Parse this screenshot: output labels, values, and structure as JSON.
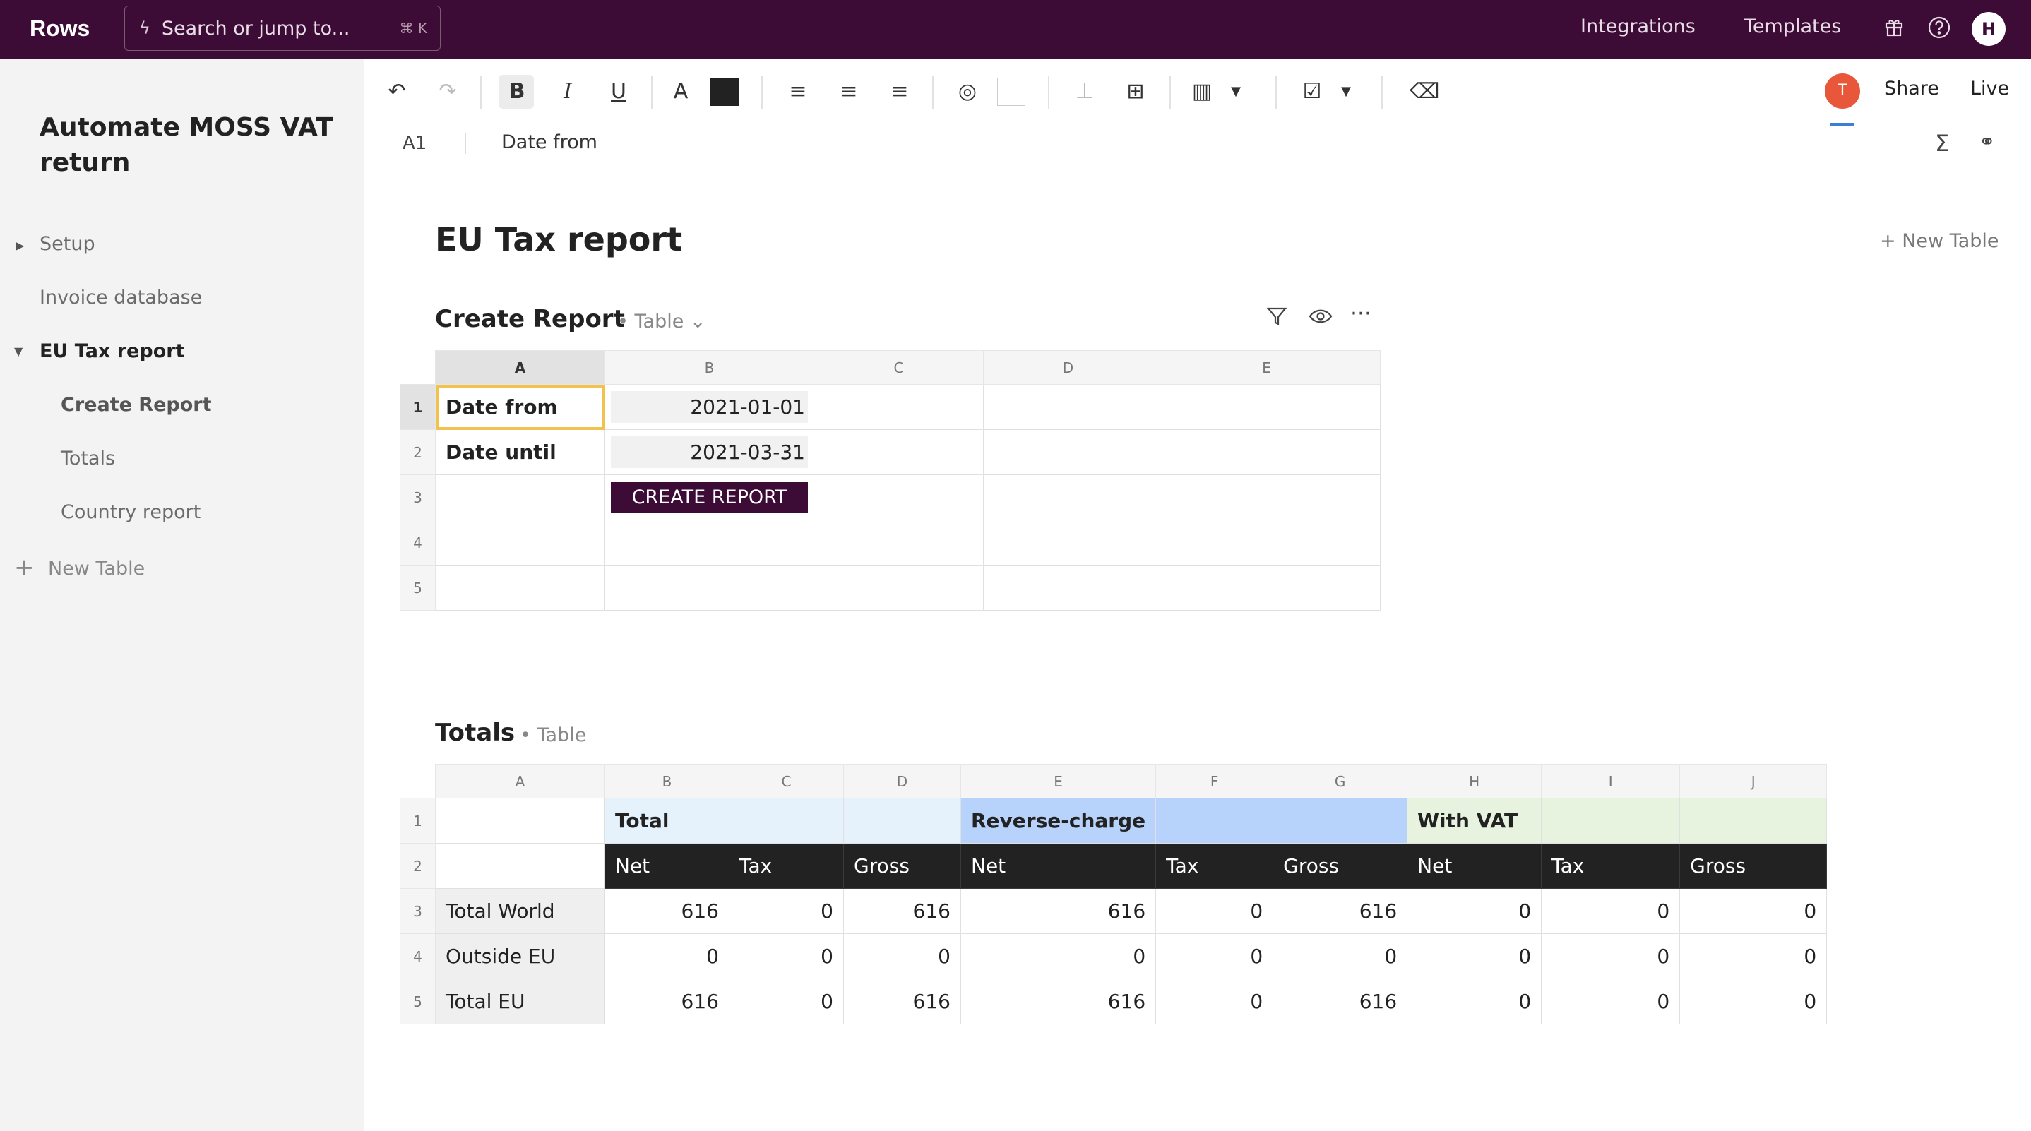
{
  "app": {
    "logo": "Rows",
    "search_placeholder": "Search or jump to...",
    "search_shortcut": "⌘ K",
    "nav": {
      "integrations": "Integrations",
      "templates": "Templates"
    },
    "user_initial": "H"
  },
  "sidebar": {
    "doc_title": "Automate MOSS VAT return",
    "items": [
      {
        "label": "Setup"
      },
      {
        "label": "Invoice database"
      },
      {
        "label": "EU Tax report"
      },
      {
        "label": "Create Report"
      },
      {
        "label": "Totals"
      },
      {
        "label": "Country report"
      }
    ],
    "new_table": "New Table"
  },
  "toolbar": {
    "collaborator_initial": "T",
    "share": "Share",
    "live": "Live",
    "icons": [
      "undo-icon",
      "redo-icon",
      "bold-icon",
      "italic-icon",
      "underline-icon",
      "text-color-icon",
      "align-left-icon",
      "align-center-icon",
      "align-right-icon",
      "palette-icon",
      "format-painter-icon",
      "merge-cells-icon",
      "column-layout-icon",
      "checkbox-icon",
      "clear-format-icon"
    ]
  },
  "formula_bar": {
    "cell_ref": "A1",
    "value": "Date from"
  },
  "page": {
    "title": "EU Tax report",
    "new_table": "+ New Table"
  },
  "create_report": {
    "title": "Create Report",
    "view": "Table",
    "columns": [
      "A",
      "B",
      "C",
      "D",
      "E"
    ],
    "rows": [
      "1",
      "2",
      "3",
      "4",
      "5"
    ],
    "cells": {
      "a1": "Date from",
      "b1": "2021-01-01",
      "a2": "Date until",
      "b2": "2021-03-31",
      "button": "CREATE REPORT"
    }
  },
  "totals": {
    "title": "Totals",
    "view": "Table",
    "columns": [
      "A",
      "B",
      "C",
      "D",
      "E",
      "F",
      "G",
      "H",
      "I",
      "J"
    ],
    "rows": [
      "1",
      "2",
      "3",
      "4",
      "5"
    ],
    "groups": {
      "total": "Total",
      "reverse": "Reverse-charge",
      "vat": "With VAT"
    },
    "subheaders": [
      "Net",
      "Tax",
      "Gross",
      "Net",
      "Tax",
      "Gross",
      "Net",
      "Tax",
      "Gross"
    ],
    "data": [
      {
        "label": "Total World",
        "values": [
          "616",
          "0",
          "616",
          "616",
          "0",
          "616",
          "0",
          "0",
          "0"
        ]
      },
      {
        "label": "Outside EU",
        "values": [
          "0",
          "0",
          "0",
          "0",
          "0",
          "0",
          "0",
          "0",
          "0"
        ]
      },
      {
        "label": "Total EU",
        "values": [
          "616",
          "0",
          "616",
          "616",
          "0",
          "616",
          "0",
          "0",
          "0"
        ]
      }
    ]
  }
}
